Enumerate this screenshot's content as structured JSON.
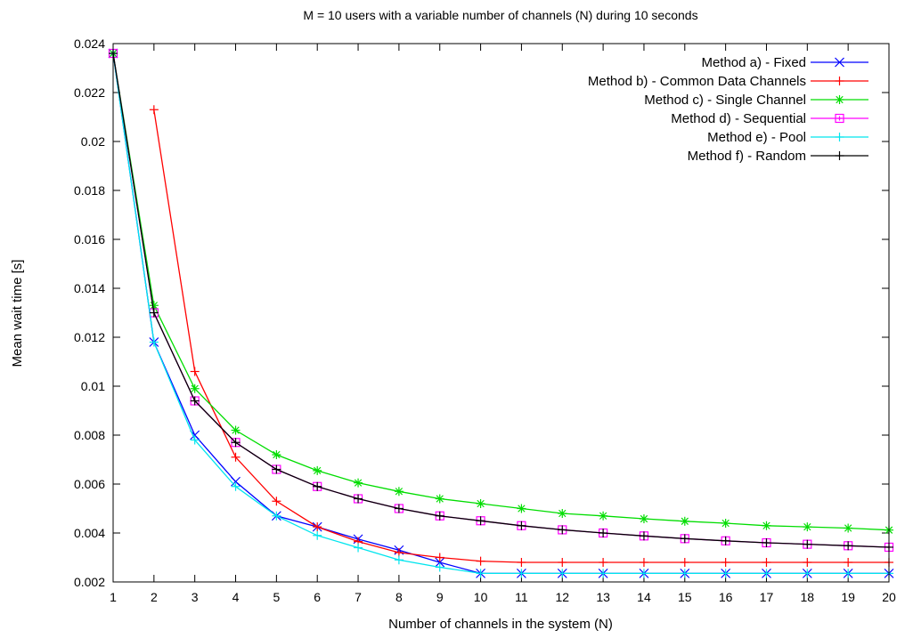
{
  "chart_data": {
    "type": "line",
    "title": "M = 10 users with a variable number of channels (N) during 10 seconds",
    "xlabel": "Number of channels in the system (N)",
    "ylabel": "Mean wait time [s]",
    "xlim": [
      1,
      20
    ],
    "ylim": [
      0.002,
      0.024
    ],
    "x_ticks": [
      "1",
      "2",
      "3",
      "4",
      "5",
      "6",
      "7",
      "8",
      "9",
      "10",
      "11",
      "12",
      "13",
      "14",
      "15",
      "16",
      "17",
      "18",
      "19",
      "20"
    ],
    "y_ticks": [
      "0.002",
      "0.004",
      "0.006",
      "0.008",
      "0.01",
      "0.012",
      "0.014",
      "0.016",
      "0.018",
      "0.02",
      "0.022",
      "0.024"
    ],
    "grid": false,
    "legend_position": "top-right",
    "series": [
      {
        "name": "Method a) - Fixed",
        "color": "#0000ff",
        "marker": "x",
        "x": [
          1,
          2,
          3,
          4,
          5,
          6,
          7,
          8,
          9,
          10,
          11,
          12,
          13,
          14,
          15,
          16,
          17,
          18,
          19,
          20
        ],
        "y": [
          0.0236,
          0.0118,
          0.008,
          0.0061,
          0.0047,
          0.00425,
          0.00375,
          0.0033,
          0.0028,
          0.00235,
          0.00235,
          0.00235,
          0.00235,
          0.00235,
          0.00235,
          0.00235,
          0.00235,
          0.00235,
          0.00235,
          0.00235
        ]
      },
      {
        "name": "Method b) - Common Data Channels",
        "color": "#ff0000",
        "marker": "plus",
        "x": [
          2,
          3,
          4,
          5,
          6,
          7,
          8,
          9,
          10,
          11,
          12,
          13,
          14,
          15,
          16,
          17,
          18,
          19,
          20
        ],
        "y": [
          0.0213,
          0.0106,
          0.0071,
          0.0053,
          0.00425,
          0.00365,
          0.0032,
          0.003,
          0.00285,
          0.0028,
          0.0028,
          0.0028,
          0.0028,
          0.0028,
          0.0028,
          0.0028,
          0.0028,
          0.0028,
          0.0028
        ]
      },
      {
        "name": "Method c) - Single Channel",
        "color": "#00dd00",
        "marker": "star",
        "x": [
          1,
          2,
          3,
          4,
          5,
          6,
          7,
          8,
          9,
          10,
          11,
          12,
          13,
          14,
          15,
          16,
          17,
          18,
          19,
          20
        ],
        "y": [
          0.0236,
          0.0133,
          0.0099,
          0.0082,
          0.0072,
          0.00655,
          0.00605,
          0.0057,
          0.0054,
          0.0052,
          0.005,
          0.0048,
          0.0047,
          0.00458,
          0.00448,
          0.0044,
          0.0043,
          0.00425,
          0.0042,
          0.00412
        ]
      },
      {
        "name": "Method d) - Sequential",
        "color": "#ff00ff",
        "marker": "square",
        "x": [
          1,
          2,
          3,
          4,
          5,
          6,
          7,
          8,
          9,
          10,
          11,
          12,
          13,
          14,
          15,
          16,
          17,
          18,
          19,
          20
        ],
        "y": [
          0.0236,
          0.013,
          0.0094,
          0.0077,
          0.0066,
          0.0059,
          0.0054,
          0.005,
          0.0047,
          0.0045,
          0.0043,
          0.00413,
          0.004,
          0.00388,
          0.00377,
          0.00368,
          0.0036,
          0.00354,
          0.00348,
          0.00342
        ]
      },
      {
        "name": "Method e) - Pool",
        "color": "#00e5ee",
        "marker": "plus",
        "x": [
          1,
          2,
          3,
          4,
          5,
          6,
          7,
          8,
          9,
          10,
          11,
          12,
          13,
          14,
          15,
          16,
          17,
          18,
          19,
          20
        ],
        "y": [
          0.0236,
          0.0118,
          0.0078,
          0.0059,
          0.0047,
          0.0039,
          0.0034,
          0.0029,
          0.0026,
          0.00235,
          0.00235,
          0.00235,
          0.00235,
          0.00235,
          0.00235,
          0.00235,
          0.00235,
          0.00235,
          0.00235,
          0.00235
        ]
      },
      {
        "name": "Method f) - Random",
        "color": "#000000",
        "marker": "plus",
        "x": [
          1,
          2,
          3,
          4,
          5,
          6,
          7,
          8,
          9,
          10,
          11,
          12,
          13,
          14,
          15,
          16,
          17,
          18,
          19,
          20
        ],
        "y": [
          0.0236,
          0.013,
          0.0094,
          0.0077,
          0.0066,
          0.0059,
          0.0054,
          0.005,
          0.0047,
          0.0045,
          0.0043,
          0.00413,
          0.004,
          0.00388,
          0.00377,
          0.00368,
          0.0036,
          0.00354,
          0.00348,
          0.00342
        ]
      }
    ]
  }
}
